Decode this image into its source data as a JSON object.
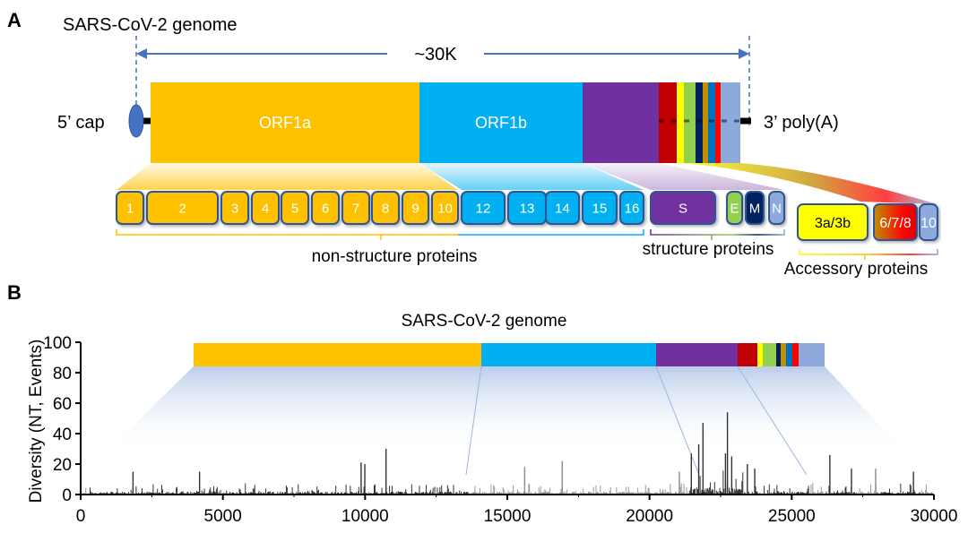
{
  "panel_a": {
    "label": "A",
    "title": "SARS-CoV-2 genome",
    "length_label": "~30K",
    "five_prime": "5’ cap",
    "three_prime": "3’ poly(A)",
    "orf1a": "ORF1a",
    "orf1b": "ORF1b",
    "nsp_boxes": [
      "1",
      "2",
      "3",
      "4",
      "5",
      "6",
      "7",
      "8",
      "9",
      "10",
      "12",
      "13",
      "14",
      "15",
      "16"
    ],
    "structural_boxes": [
      "S",
      "E",
      "M",
      "N"
    ],
    "accessory_boxes": [
      "3a/3b",
      "6/7/8",
      "10"
    ],
    "group_labels": {
      "non_structure": "non-structure proteins",
      "structure": "structure proteins",
      "accessory": "Accessory proteins"
    }
  },
  "panel_b": {
    "label": "B",
    "title": "SARS-CoV-2 genome"
  },
  "colors": {
    "orf1a": "#FFC000",
    "orf1b": "#00B0F0",
    "spike": "#7030A0",
    "orf3": "#C00000",
    "envelope_yellow": "#FFFF00",
    "green": "#92D050",
    "navy": "#002060",
    "gold": "#BF8F00",
    "blue": "#0070C0",
    "red": "#FF0000",
    "nucleocapsid": "#8EA9DB",
    "box_border": "#2F5597"
  },
  "chart_data": {
    "type": "bar",
    "xlabel": "",
    "ylabel": "Diversity (NT, Events)",
    "xlim": [
      0,
      30000
    ],
    "ylim": [
      0,
      100
    ],
    "xticks": [
      "0",
      "5000",
      "10000",
      "15000",
      "20000",
      "25000",
      "30000"
    ],
    "yticks": [
      "0",
      "20",
      "40",
      "60",
      "80",
      "100"
    ],
    "grid": false,
    "baseline_level": [
      2,
      8
    ],
    "peaks": [
      {
        "x": 1840,
        "y": 15
      },
      {
        "x": 4180,
        "y": 15
      },
      {
        "x": 9860,
        "y": 21
      },
      {
        "x": 9990,
        "y": 20
      },
      {
        "x": 10736,
        "y": 30
      },
      {
        "x": 15610,
        "y": 18
      },
      {
        "x": 16930,
        "y": 22
      },
      {
        "x": 21050,
        "y": 15
      },
      {
        "x": 21470,
        "y": 27
      },
      {
        "x": 21730,
        "y": 33
      },
      {
        "x": 21880,
        "y": 47
      },
      {
        "x": 22670,
        "y": 27
      },
      {
        "x": 22740,
        "y": 54
      },
      {
        "x": 22890,
        "y": 25
      },
      {
        "x": 23440,
        "y": 20
      },
      {
        "x": 23700,
        "y": 17
      },
      {
        "x": 26340,
        "y": 26
      },
      {
        "x": 27100,
        "y": 17
      },
      {
        "x": 27950,
        "y": 17
      },
      {
        "x": 29280,
        "y": 15
      }
    ]
  }
}
